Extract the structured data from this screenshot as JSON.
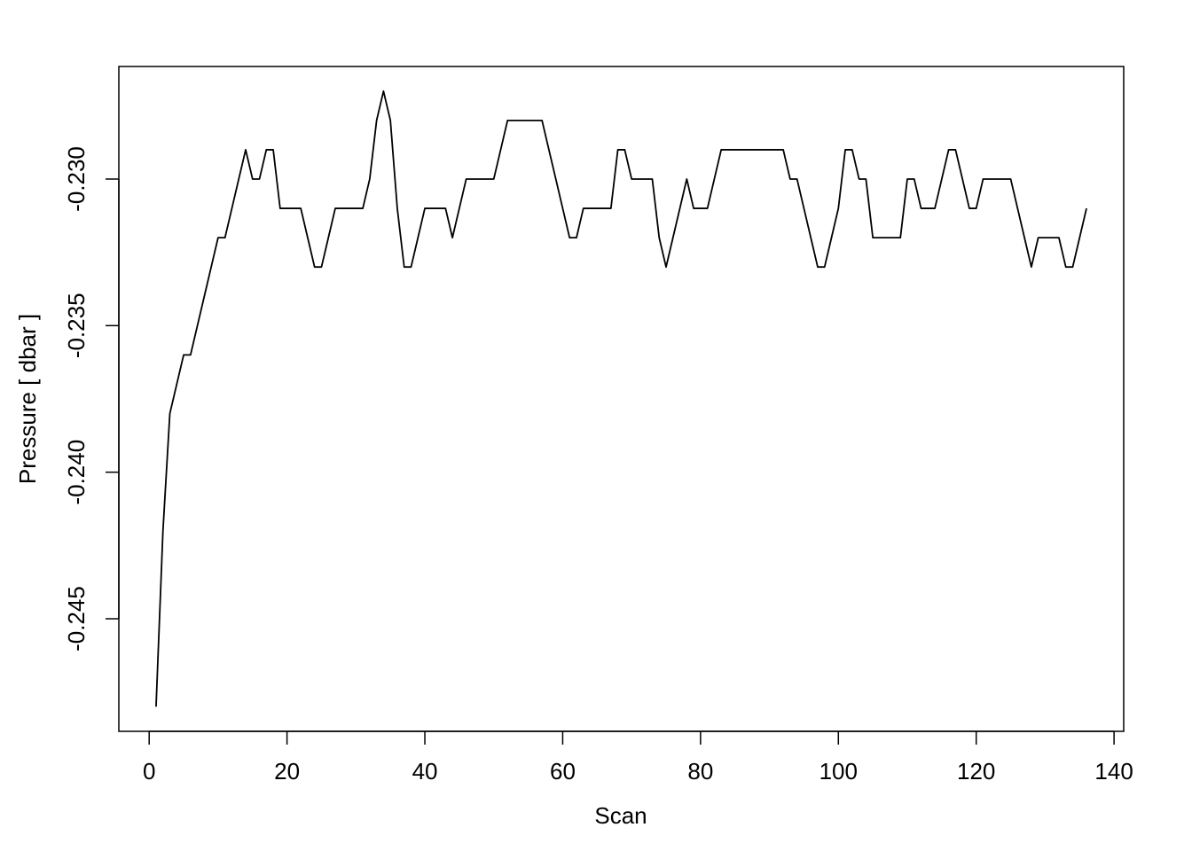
{
  "chart_data": {
    "type": "line",
    "x_label": "Scan",
    "y_label": "Pressure [ dbar ]",
    "x": [
      1,
      2,
      3,
      4,
      5,
      6,
      7,
      8,
      9,
      10,
      11,
      12,
      13,
      14,
      15,
      16,
      17,
      18,
      19,
      20,
      21,
      22,
      23,
      24,
      25,
      26,
      27,
      28,
      29,
      30,
      31,
      32,
      33,
      34,
      35,
      36,
      37,
      38,
      39,
      40,
      41,
      42,
      43,
      44,
      45,
      46,
      47,
      48,
      49,
      50,
      51,
      52,
      53,
      54,
      55,
      56,
      57,
      58,
      59,
      60,
      61,
      62,
      63,
      64,
      65,
      66,
      67,
      68,
      69,
      70,
      71,
      72,
      73,
      74,
      75,
      76,
      77,
      78,
      79,
      80,
      81,
      82,
      83,
      84,
      85,
      86,
      87,
      88,
      89,
      90,
      91,
      92,
      93,
      94,
      95,
      96,
      97,
      98,
      99,
      100,
      101,
      102,
      103,
      104,
      105,
      106,
      107,
      108,
      109,
      110,
      111,
      112,
      113,
      114,
      115,
      116,
      117,
      118,
      119,
      120,
      121,
      122,
      123,
      124,
      125,
      126,
      127,
      128,
      129,
      130,
      131,
      132,
      133,
      134,
      135,
      136
    ],
    "values": [
      -0.248,
      -0.242,
      -0.238,
      -0.237,
      -0.236,
      -0.236,
      -0.235,
      -0.234,
      -0.233,
      -0.232,
      -0.232,
      -0.231,
      -0.23,
      -0.229,
      -0.23,
      -0.23,
      -0.229,
      -0.229,
      -0.231,
      -0.231,
      -0.231,
      -0.231,
      -0.232,
      -0.233,
      -0.233,
      -0.232,
      -0.231,
      -0.231,
      -0.231,
      -0.231,
      -0.231,
      -0.23,
      -0.228,
      -0.227,
      -0.228,
      -0.231,
      -0.233,
      -0.233,
      -0.232,
      -0.231,
      -0.231,
      -0.231,
      -0.231,
      -0.232,
      -0.231,
      -0.23,
      -0.23,
      -0.23,
      -0.23,
      -0.23,
      -0.229,
      -0.228,
      -0.228,
      -0.228,
      -0.228,
      -0.228,
      -0.228,
      -0.229,
      -0.23,
      -0.231,
      -0.232,
      -0.232,
      -0.231,
      -0.231,
      -0.231,
      -0.231,
      -0.231,
      -0.229,
      -0.229,
      -0.23,
      -0.23,
      -0.23,
      -0.23,
      -0.232,
      -0.233,
      -0.232,
      -0.231,
      -0.23,
      -0.231,
      -0.231,
      -0.231,
      -0.23,
      -0.229,
      -0.229,
      -0.229,
      -0.229,
      -0.229,
      -0.229,
      -0.229,
      -0.229,
      -0.229,
      -0.229,
      -0.23,
      -0.23,
      -0.231,
      -0.232,
      -0.233,
      -0.233,
      -0.232,
      -0.231,
      -0.229,
      -0.229,
      -0.23,
      -0.23,
      -0.232,
      -0.232,
      -0.232,
      -0.232,
      -0.232,
      -0.23,
      -0.23,
      -0.231,
      -0.231,
      -0.231,
      -0.23,
      -0.229,
      -0.229,
      -0.23,
      -0.231,
      -0.231,
      -0.23,
      -0.23,
      -0.23,
      -0.23,
      -0.23,
      -0.231,
      -0.232,
      -0.233,
      -0.232,
      -0.232,
      -0.232,
      -0.232,
      -0.233,
      -0.233,
      -0.232,
      -0.231
    ],
    "color": "#000000",
    "xlim": [
      -4.4,
      141.4
    ],
    "ylim": [
      -0.24884,
      -0.22616
    ],
    "xticks": [
      0,
      20,
      40,
      60,
      80,
      100,
      120,
      140
    ],
    "yticks": [
      -0.245,
      {
        "value": -0.24,
        "label": "-0.240"
      },
      -0.235,
      {
        "value": -0.23,
        "label": "-0.230"
      }
    ]
  }
}
